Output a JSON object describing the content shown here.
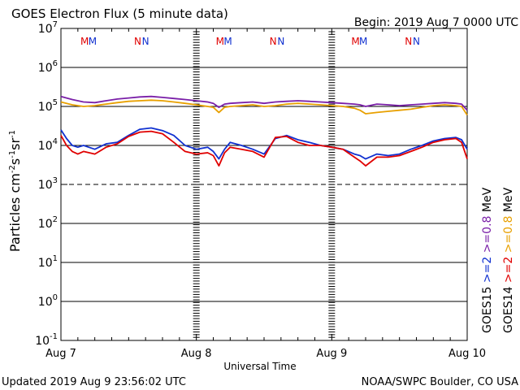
{
  "chart_data": {
    "type": "line",
    "title": "GOES Electron Flux (5 minute data)",
    "begin_label": "Begin: 2019 Aug 7 0000 UTC",
    "xlabel": "Universal Time",
    "ylabel_main": "Particles cm",
    "ylabel_exp1": "-2",
    "ylabel_mid1": "s",
    "ylabel_exp2": "-1",
    "ylabel_mid2": "sr",
    "ylabel_exp3": "-1",
    "updated": "Updated 2019 Aug  9 23:56:02 UTC",
    "credit": "NOAA/SWPC Boulder, CO USA",
    "x_tick_labels": [
      "Aug 7",
      "Aug 8",
      "Aug 9",
      "Aug 10"
    ],
    "xlim": [
      0,
      72
    ],
    "y_scale": "log",
    "ylim": [
      0.1,
      10000000
    ],
    "y_tick_labels": [
      {
        "base": "10",
        "exp": "7"
      },
      {
        "base": "10",
        "exp": "6"
      },
      {
        "base": "10",
        "exp": "5"
      },
      {
        "base": "10",
        "exp": "4"
      },
      {
        "base": "10",
        "exp": "3"
      },
      {
        "base": "10",
        "exp": "2"
      },
      {
        "base": "10",
        "exp": "1"
      },
      {
        "base": "10",
        "exp": "0"
      },
      {
        "base": "10",
        "exp": "-1"
      }
    ],
    "threshold": 1000,
    "markers": [
      {
        "label": "M",
        "x": 4.2,
        "color": "#e00000"
      },
      {
        "label": "M",
        "x": 5.6,
        "color": "#1030d0"
      },
      {
        "label": "N",
        "x": 13.6,
        "color": "#e00000"
      },
      {
        "label": "N",
        "x": 15.0,
        "color": "#1030d0"
      },
      {
        "label": "M",
        "x": 28.2,
        "color": "#e00000"
      },
      {
        "label": "M",
        "x": 29.6,
        "color": "#1030d0"
      },
      {
        "label": "N",
        "x": 37.6,
        "color": "#e00000"
      },
      {
        "label": "N",
        "x": 39.0,
        "color": "#1030d0"
      },
      {
        "label": "M",
        "x": 52.2,
        "color": "#e00000"
      },
      {
        "label": "M",
        "x": 53.6,
        "color": "#1030d0"
      },
      {
        "label": "N",
        "x": 61.6,
        "color": "#e00000"
      },
      {
        "label": "N",
        "x": 63.0,
        "color": "#1030d0"
      }
    ],
    "legend": {
      "col1": [
        {
          "text": "GOES15",
          "color": "#000000"
        },
        {
          "text": ">=2",
          "color": "#1030d0"
        },
        {
          "text": ">=0.8",
          "color": "#7a1fa8"
        },
        {
          "text": "MeV",
          "color": "#000000"
        }
      ],
      "col2": [
        {
          "text": "GOES14",
          "color": "#000000"
        },
        {
          "text": ">=2",
          "color": "#e00000"
        },
        {
          "text": ">=0.8",
          "color": "#e8a000"
        },
        {
          "text": "MeV",
          "color": "#000000"
        }
      ]
    },
    "series": [
      {
        "name": "GOES15 >=0.8 MeV",
        "color": "#7a1fa8",
        "x": [
          0,
          1,
          2,
          3,
          4,
          6,
          8,
          10,
          12,
          14,
          16,
          18,
          20,
          22,
          24,
          26,
          27,
          28,
          29,
          30,
          32,
          34,
          36,
          38,
          40,
          42,
          44,
          46,
          48,
          50,
          52,
          53,
          54,
          56,
          58,
          60,
          62,
          64,
          66,
          68,
          70,
          71,
          72
        ],
        "y": [
          180000,
          165000,
          150000,
          140000,
          130000,
          125000,
          140000,
          155000,
          165000,
          175000,
          180000,
          170000,
          160000,
          150000,
          140000,
          130000,
          120000,
          95000,
          115000,
          120000,
          125000,
          130000,
          120000,
          130000,
          135000,
          140000,
          135000,
          130000,
          125000,
          120000,
          115000,
          110000,
          100000,
          115000,
          110000,
          105000,
          110000,
          115000,
          120000,
          125000,
          120000,
          115000,
          80000
        ]
      },
      {
        "name": "GOES14 >=0.8 MeV",
        "color": "#e8a000",
        "x": [
          0,
          1,
          2,
          3,
          4,
          6,
          8,
          10,
          12,
          14,
          16,
          18,
          20,
          22,
          24,
          26,
          27,
          28,
          29,
          30,
          32,
          34,
          36,
          38,
          40,
          42,
          44,
          46,
          48,
          50,
          52,
          53,
          54,
          56,
          58,
          60,
          62,
          64,
          66,
          68,
          70,
          71,
          72
        ],
        "y": [
          130000,
          120000,
          110000,
          105000,
          100000,
          105000,
          115000,
          125000,
          135000,
          140000,
          145000,
          140000,
          130000,
          120000,
          110000,
          100000,
          95000,
          70000,
          95000,
          100000,
          105000,
          110000,
          100000,
          105000,
          115000,
          120000,
          115000,
          110000,
          105000,
          100000,
          90000,
          80000,
          65000,
          70000,
          75000,
          80000,
          85000,
          95000,
          105000,
          110000,
          105000,
          100000,
          60000
        ]
      },
      {
        "name": "GOES15 >=2 MeV",
        "color": "#1030d0",
        "x": [
          0,
          1,
          2,
          3,
          4,
          6,
          8,
          10,
          12,
          14,
          16,
          18,
          20,
          22,
          24,
          26,
          27,
          28,
          29,
          30,
          32,
          34,
          36,
          38,
          40,
          42,
          44,
          46,
          48,
          50,
          52,
          53,
          54,
          56,
          58,
          60,
          62,
          64,
          66,
          68,
          70,
          71,
          72
        ],
        "y": [
          25000,
          15000,
          10000,
          9000,
          10000,
          8000,
          11000,
          12000,
          18000,
          26000,
          28000,
          24000,
          18000,
          10000,
          8000,
          9000,
          7000,
          4500,
          8000,
          12000,
          10000,
          8000,
          6000,
          15000,
          18000,
          14000,
          12000,
          10000,
          9000,
          8000,
          6000,
          5500,
          4500,
          6000,
          5500,
          6000,
          8000,
          10000,
          13000,
          15000,
          16000,
          14000,
          8000
        ]
      },
      {
        "name": "GOES14 >=2 MeV",
        "color": "#e00000",
        "x": [
          0,
          1,
          2,
          3,
          4,
          6,
          8,
          10,
          12,
          14,
          16,
          18,
          20,
          22,
          24,
          26,
          27,
          28,
          29,
          30,
          32,
          34,
          36,
          38,
          40,
          42,
          44,
          46,
          48,
          50,
          52,
          53,
          54,
          56,
          58,
          60,
          62,
          64,
          66,
          68,
          70,
          71,
          72
        ],
        "y": [
          18000,
          10000,
          7000,
          6000,
          7000,
          6000,
          9000,
          11000,
          17000,
          22000,
          23000,
          20000,
          12000,
          7000,
          6000,
          6500,
          5500,
          3000,
          6500,
          9000,
          8000,
          7000,
          5000,
          16000,
          17000,
          12000,
          10000,
          10000,
          9000,
          8000,
          5000,
          4000,
          3000,
          5000,
          5000,
          5500,
          7000,
          9000,
          12000,
          14000,
          15000,
          12000,
          4500
        ]
      }
    ]
  }
}
